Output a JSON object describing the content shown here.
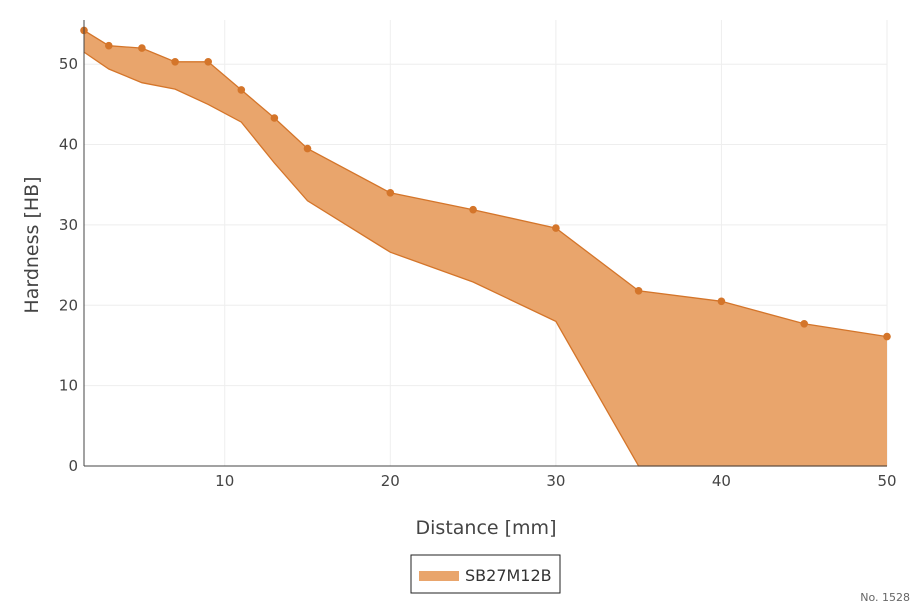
{
  "chart_data": {
    "type": "area",
    "xlabel": "Distance [mm]",
    "ylabel": "Hardness [HB]",
    "xlim": [
      1.5,
      50
    ],
    "ylim": [
      0,
      55.5
    ],
    "x_ticks": [
      10,
      20,
      30,
      40,
      50
    ],
    "y_ticks": [
      0,
      10,
      20,
      30,
      40,
      50
    ],
    "grid": true,
    "legend_placement": "bottom-center",
    "series": [
      {
        "name": "SB27M12B",
        "upper": {
          "x": [
            1.5,
            3,
            5,
            7,
            9,
            11,
            13,
            15,
            20,
            25,
            30,
            35,
            40,
            45,
            50
          ],
          "y": [
            54.2,
            52.3,
            52.0,
            50.3,
            50.3,
            46.8,
            43.3,
            39.5,
            34.0,
            31.9,
            29.6,
            21.8,
            20.5,
            17.7,
            16.1
          ]
        },
        "lower": {
          "x": [
            1.5,
            3,
            5,
            7,
            9,
            11,
            13,
            15,
            20,
            25,
            30,
            35,
            40,
            45,
            50
          ],
          "y": [
            51.5,
            49.4,
            47.7,
            46.9,
            45.0,
            42.8,
            37.7,
            33.0,
            26.6,
            22.9,
            18.0,
            0,
            0,
            0,
            0
          ]
        },
        "fill_color": "#e9a56c",
        "line_color": "#d4752a"
      }
    ]
  },
  "note": "No. 1528"
}
